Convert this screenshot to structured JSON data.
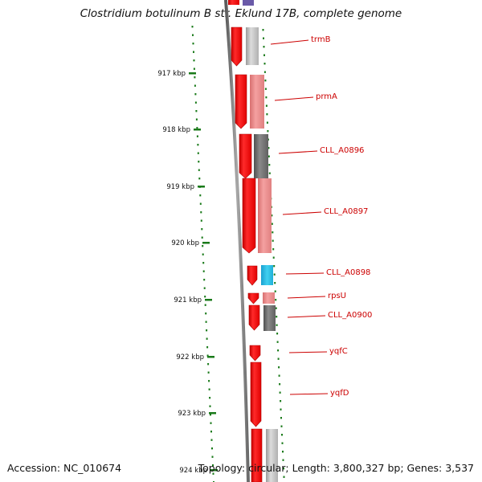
{
  "title": "Clostridium botulinum B str. Eklund 17B, complete genome",
  "footer": {
    "accession": "Accession: NC_010674",
    "info": "Topology: circular; Length: 3,800,327 bp; Genes: 3,537"
  },
  "colors": {
    "label": "#cc0000",
    "tick": "#1a7a1a",
    "gene_forward": "#ff0000",
    "backbone": "#777777"
  },
  "ruler": [
    {
      "label": "917 kbp"
    },
    {
      "label": "918 kbp"
    },
    {
      "label": "919 kbp"
    },
    {
      "label": "920 kbp"
    },
    {
      "label": "921 kbp"
    },
    {
      "label": "922 kbp"
    },
    {
      "label": "923 kbp"
    },
    {
      "label": "924 kbp"
    }
  ],
  "genes": [
    {
      "name": "trmB"
    },
    {
      "name": "prmA"
    },
    {
      "name": "CLL_A0896"
    },
    {
      "name": "CLL_A0897"
    },
    {
      "name": "CLL_A0898"
    },
    {
      "name": "rpsU"
    },
    {
      "name": "CLL_A0900"
    },
    {
      "name": "yqfC"
    },
    {
      "name": "yqfD"
    }
  ]
}
